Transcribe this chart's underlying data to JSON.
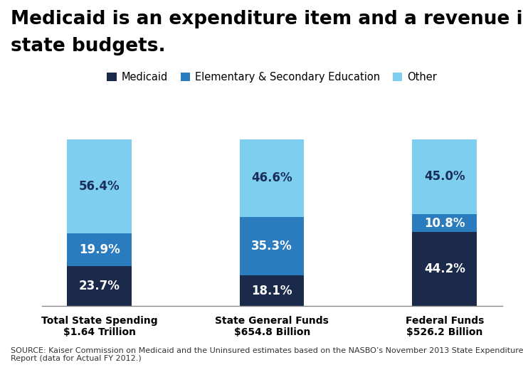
{
  "title_line1": "Medicaid is an expenditure item and a revenue item in",
  "title_line2": "state budgets.",
  "categories": [
    "Total State Spending\n$1.64 Trillion",
    "State General Funds\n$654.8 Billion",
    "Federal Funds\n$526.2 Billion"
  ],
  "medicaid": [
    23.7,
    18.1,
    44.2
  ],
  "education": [
    19.9,
    35.3,
    10.8
  ],
  "other": [
    56.4,
    46.6,
    45.0
  ],
  "colors": {
    "medicaid": "#1b2a4a",
    "education": "#2b7bbf",
    "other": "#7ecef0"
  },
  "legend_labels": [
    "Medicaid",
    "Elementary & Secondary Education",
    "Other"
  ],
  "bar_width": 0.28,
  "source_text": "SOURCE: Kaiser Commission on Medicaid and the Uninsured estimates based on the NASBO’s November 2013 State Expenditure\nReport (data for Actual FY 2012.)",
  "background_color": "#ffffff",
  "label_fontsize": 12,
  "title_fontsize": 19,
  "legend_fontsize": 10.5,
  "source_fontsize": 8,
  "other_label_color_dark": "#1a2e5a",
  "other_label_color_white": "white"
}
